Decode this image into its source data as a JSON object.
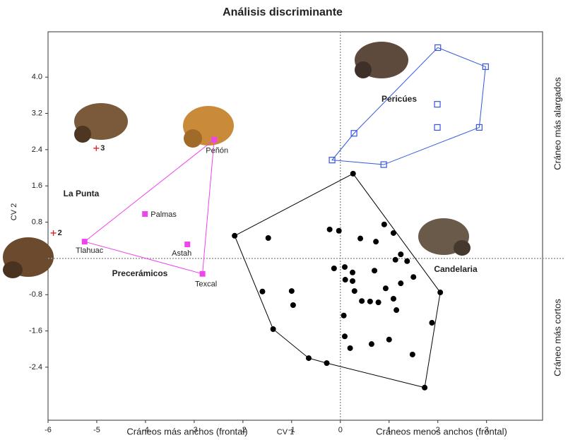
{
  "chart_data": {
    "type": "scatter",
    "title": "Análisis discriminante",
    "x_label": "CV 1",
    "y_label": "CV 2",
    "annotations": [
      "Cráneos más anchos (frontal)",
      "Cráneos menos anchos (frontal)",
      "Cráneo más alargados",
      "Cráneo más cortos"
    ],
    "xlim": [
      -6,
      4.15
    ],
    "ylim": [
      -3.57,
      5.0
    ],
    "xticks": [
      -6,
      -5,
      -4,
      -3,
      -2,
      -1,
      0,
      1,
      2,
      3
    ],
    "yticks": [
      {
        "value": 4.0,
        "label": "4.0"
      },
      {
        "value": 3.2,
        "label": "3.2"
      },
      {
        "value": 2.4,
        "label": "2.4"
      },
      {
        "value": 1.6,
        "label": "1.6"
      },
      {
        "value": 0.8,
        "label": "0.8"
      },
      {
        "value": -0.8,
        "label": "-0.8"
      },
      {
        "value": -1.6,
        "label": "-1.6"
      },
      {
        "value": -2.4,
        "label": "-2.4"
      }
    ],
    "series": [
      {
        "name": "Pericúes",
        "color": "#3355dd",
        "marker": "open-square",
        "hull": true,
        "x": [
          2.0,
          2.98,
          2.85,
          1.99,
          1.99,
          0.28,
          -0.17,
          0.89
        ],
        "values": [
          4.65,
          4.23,
          2.89,
          3.4,
          2.89,
          2.76,
          2.17,
          2.07
        ]
      },
      {
        "name": "Precerámicos",
        "color": "#ee44ee",
        "marker": "square",
        "hull": true,
        "x": [
          -2.59,
          -4.01,
          -3.14,
          -5.25,
          -2.83
        ],
        "values": [
          2.62,
          0.98,
          0.31,
          0.37,
          -0.34
        ],
        "labels": [
          "Peñón",
          "Palmas",
          "Astah",
          "Tlahuac",
          "Texcal"
        ]
      },
      {
        "name": "Candelaria",
        "color": "#000000",
        "marker": "circle",
        "hull": true,
        "x": [
          0.26,
          -2.17,
          -1.48,
          -0.22,
          -0.03,
          0.9,
          1.09,
          0.41,
          0.73,
          1.24,
          1.13,
          -0.13,
          0.09,
          0.25,
          1.37,
          0.1,
          0.25,
          0.7,
          1.5,
          1.24,
          0.93,
          -1.6,
          -1.0,
          -0.97,
          0.29,
          0.44,
          0.61,
          0.78,
          1.09,
          -1.38,
          0.07,
          1.15,
          1.88,
          -0.65,
          -0.28,
          1.73,
          0.09,
          0.2,
          0.64,
          1.0,
          1.48,
          2.05
        ],
        "values": [
          1.87,
          0.5,
          0.45,
          0.64,
          0.61,
          0.75,
          0.56,
          0.44,
          0.37,
          0.09,
          -0.03,
          -0.22,
          -0.19,
          -0.31,
          -0.06,
          -0.47,
          -0.5,
          -0.27,
          -0.41,
          -0.55,
          -0.66,
          -0.73,
          -0.72,
          -1.03,
          -0.72,
          -0.94,
          -0.95,
          -0.97,
          -0.89,
          -1.56,
          -1.26,
          -1.14,
          -1.42,
          -2.2,
          -2.31,
          -2.85,
          -1.72,
          -1.98,
          -1.89,
          -1.79,
          -2.12,
          -0.75
        ]
      },
      {
        "name": "La Punta",
        "color": "#dd2222",
        "marker": "cross",
        "hull": false,
        "x": [
          -5.01,
          -5.89
        ],
        "values": [
          2.43,
          0.56
        ],
        "labels": [
          "3",
          "2"
        ]
      }
    ]
  }
}
